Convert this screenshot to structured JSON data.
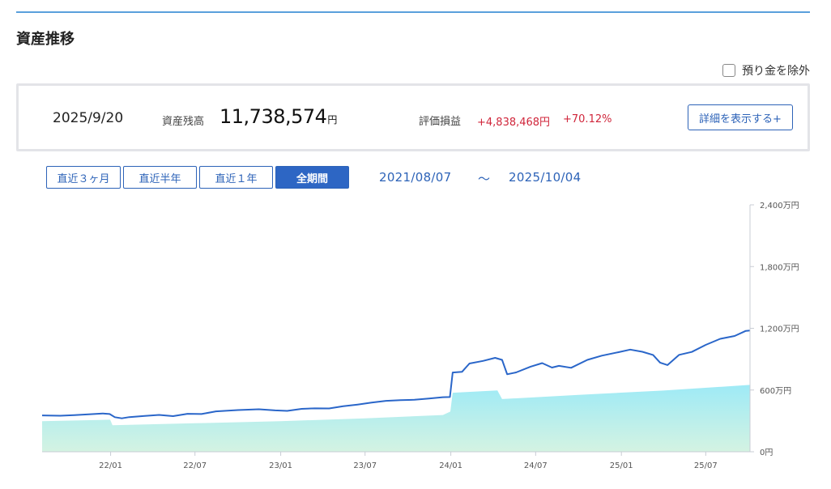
{
  "section": {
    "title": "資産推移"
  },
  "exclude_deposit": {
    "label": "預り金を除外",
    "checked": false
  },
  "summary": {
    "date": "2025/9/20",
    "balance_label": "資産残高",
    "balance_value": "11,738,574",
    "balance_unit": "円",
    "pl_label": "評価損益",
    "pl_value": "+4,838,468円",
    "pl_percent": "+70.12%",
    "detail_button": "詳細を表示する+"
  },
  "range_buttons": [
    {
      "label": "直近３ヶ月",
      "active": false
    },
    {
      "label": "直近半年",
      "active": false
    },
    {
      "label": "直近１年",
      "active": false
    },
    {
      "label": "全期間",
      "active": true
    }
  ],
  "period": {
    "start": "2021/08/07",
    "separator": "〜",
    "end": "2025/10/04"
  },
  "colors": {
    "accent": "#2d66c4",
    "line": "#2a66c9",
    "area_top": "#9eeaf6",
    "area_bottom": "#d4f3e2",
    "negative": "#d0263b"
  },
  "chart_data": {
    "type": "area",
    "x_range": [
      "2021-08-07",
      "2025-10-04"
    ],
    "x_tick_labels": [
      "22/01",
      "22/07",
      "23/01",
      "23/07",
      "24/01",
      "24/07",
      "25/01",
      "25/07"
    ],
    "y_tick_labels": [
      "2,400万円",
      "1,800万円",
      "1,200万円",
      "600万円",
      "0円"
    ],
    "ylim_man_yen": [
      0,
      2400
    ],
    "y_axis_position": "right",
    "series": [
      {
        "kind": "line",
        "points": [
          [
            "2021-08-07",
            353
          ],
          [
            "2021-09-15",
            350
          ],
          [
            "2021-10-15",
            356
          ],
          [
            "2021-11-15",
            364
          ],
          [
            "2021-12-15",
            372
          ],
          [
            "2021-12-30",
            367
          ],
          [
            "2022-01-10",
            336
          ],
          [
            "2022-01-25",
            325
          ],
          [
            "2022-02-10",
            337
          ],
          [
            "2022-03-15",
            348
          ],
          [
            "2022-04-15",
            358
          ],
          [
            "2022-05-15",
            346
          ],
          [
            "2022-06-15",
            369
          ],
          [
            "2022-07-15",
            367
          ],
          [
            "2022-08-15",
            393
          ],
          [
            "2022-10-01",
            405
          ],
          [
            "2022-11-15",
            413
          ],
          [
            "2022-12-20",
            402
          ],
          [
            "2023-01-15",
            397
          ],
          [
            "2023-02-15",
            417
          ],
          [
            "2023-03-15",
            422
          ],
          [
            "2023-04-15",
            421
          ],
          [
            "2023-05-15",
            442
          ],
          [
            "2023-06-15",
            459
          ],
          [
            "2023-07-15",
            478
          ],
          [
            "2023-08-15",
            495
          ],
          [
            "2023-09-15",
            502
          ],
          [
            "2023-10-15",
            505
          ],
          [
            "2023-11-15",
            518
          ],
          [
            "2023-12-15",
            530
          ],
          [
            "2023-12-30",
            532
          ],
          [
            "2024-01-05",
            770
          ],
          [
            "2024-01-25",
            777
          ],
          [
            "2024-02-10",
            858
          ],
          [
            "2024-03-10",
            883
          ],
          [
            "2024-04-05",
            913
          ],
          [
            "2024-04-20",
            893
          ],
          [
            "2024-05-01",
            753
          ],
          [
            "2024-05-20",
            771
          ],
          [
            "2024-06-20",
            827
          ],
          [
            "2024-07-15",
            862
          ],
          [
            "2024-08-05",
            818
          ],
          [
            "2024-08-20",
            835
          ],
          [
            "2024-09-15",
            816
          ],
          [
            "2024-10-20",
            893
          ],
          [
            "2024-11-20",
            934
          ],
          [
            "2024-12-25",
            967
          ],
          [
            "2025-01-20",
            993
          ],
          [
            "2025-02-15",
            972
          ],
          [
            "2025-03-10",
            941
          ],
          [
            "2025-03-25",
            866
          ],
          [
            "2025-04-10",
            843
          ],
          [
            "2025-05-05",
            942
          ],
          [
            "2025-06-01",
            970
          ],
          [
            "2025-07-01",
            1039
          ],
          [
            "2025-08-01",
            1098
          ],
          [
            "2025-09-01",
            1125
          ],
          [
            "2025-09-25",
            1175
          ],
          [
            "2025-10-04",
            1178
          ]
        ]
      },
      {
        "kind": "area",
        "points": [
          [
            "2021-08-07",
            297
          ],
          [
            "2021-12-31",
            312
          ],
          [
            "2022-01-05",
            258
          ],
          [
            "2022-07-01",
            277
          ],
          [
            "2022-12-31",
            297
          ],
          [
            "2023-06-30",
            325
          ],
          [
            "2023-12-15",
            357
          ],
          [
            "2023-12-31",
            390
          ],
          [
            "2024-01-05",
            574
          ],
          [
            "2024-04-10",
            596
          ],
          [
            "2024-04-20",
            512
          ],
          [
            "2024-10-01",
            553
          ],
          [
            "2025-04-01",
            595
          ],
          [
            "2025-10-04",
            650
          ]
        ]
      }
    ]
  }
}
